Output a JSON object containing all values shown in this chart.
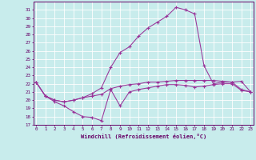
{
  "xlabel": "Windchill (Refroidissement éolien,°C)",
  "bg_color": "#c8ecec",
  "line_color": "#993399",
  "grid_color": "#b0d8d8",
  "x": [
    0,
    1,
    2,
    3,
    4,
    5,
    6,
    7,
    8,
    9,
    10,
    11,
    12,
    13,
    14,
    15,
    16,
    17,
    18,
    19,
    20,
    21,
    22,
    23
  ],
  "ylim": [
    17,
    32
  ],
  "xlim": [
    -0.3,
    23.3
  ],
  "yticks": [
    17,
    18,
    19,
    20,
    21,
    22,
    23,
    24,
    25,
    26,
    27,
    28,
    29,
    30,
    31
  ],
  "series1": [
    22.2,
    20.5,
    19.8,
    19.3,
    18.6,
    18.0,
    17.9,
    17.5,
    21.3,
    19.3,
    21.0,
    21.3,
    21.5,
    21.7,
    21.9,
    21.9,
    21.8,
    21.6,
    21.7,
    21.9,
    22.0,
    22.0,
    21.2,
    21.0
  ],
  "series2": [
    22.2,
    20.5,
    20.0,
    19.8,
    20.0,
    20.3,
    20.5,
    20.7,
    21.4,
    21.7,
    21.9,
    22.0,
    22.2,
    22.2,
    22.3,
    22.4,
    22.4,
    22.4,
    22.4,
    22.4,
    22.3,
    22.2,
    21.3,
    21.0
  ],
  "series3": [
    22.2,
    20.5,
    20.0,
    19.8,
    20.0,
    20.3,
    20.8,
    21.5,
    24.0,
    25.8,
    26.5,
    27.8,
    28.8,
    29.5,
    30.2,
    31.3,
    31.0,
    30.5,
    24.2,
    22.0,
    22.2,
    22.2,
    22.3,
    21.0
  ],
  "tick_fontsize": 4.2,
  "xlabel_fontsize": 5.0,
  "tick_color": "#660066",
  "spine_color": "#660066"
}
